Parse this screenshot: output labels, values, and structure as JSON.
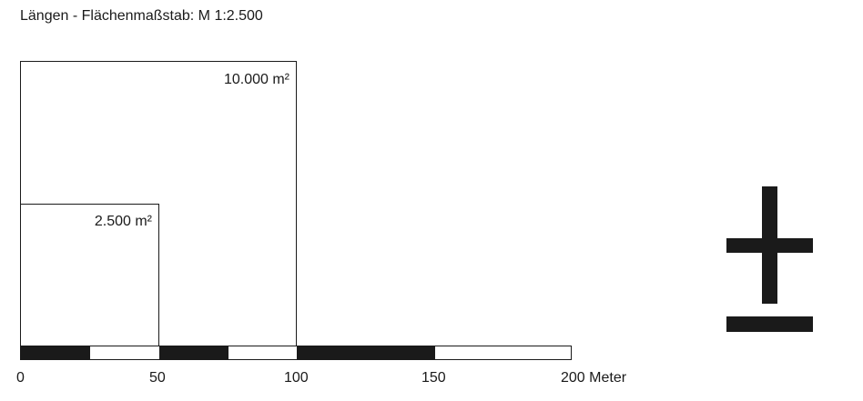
{
  "title": "Längen - Flächenmaßstab: M 1:2.500",
  "areas": {
    "large_label": "10.000 m²",
    "small_label": "2.500 m²"
  },
  "scalebar": {
    "segments": [
      "dark",
      "light",
      "dark",
      "light",
      "dark",
      "light"
    ],
    "tick_labels": [
      "0",
      "50",
      "100",
      "150",
      "200 Meter"
    ]
  },
  "colors": {
    "ink": "#1a1a1a",
    "background": "#ffffff"
  },
  "icons": {
    "north_arrow": "north-arrow-icon"
  }
}
